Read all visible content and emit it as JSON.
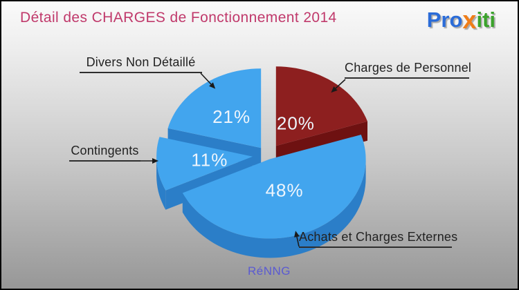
{
  "header": {
    "title": "Détail des CHARGES de Fonctionnement 2014",
    "title_color": "#c0396b"
  },
  "logo": {
    "name": "Proxiti",
    "parts": [
      {
        "text": "Pro",
        "color": "#2b6cd8"
      },
      {
        "text": "x",
        "color": "#f07d18"
      },
      {
        "text": "iti",
        "color": "#3ba32c"
      }
    ]
  },
  "chart_data": {
    "type": "pie",
    "title": "Détail des CHARGES de Fonctionnement 2014",
    "effect": "3d-exploded-pie",
    "legend_position": "callout-labels",
    "pct_label_color": "#eef5fc",
    "slices": [
      {
        "label": "Charges de Personnel",
        "value": 20,
        "pct_label": "20%",
        "color_top": "#8d1f1f",
        "color_side": "#6e1111"
      },
      {
        "label": "Achats et Charges Externes",
        "value": 48,
        "pct_label": "48%",
        "color_top": "#42a5ee",
        "color_side": "#2b7ec8"
      },
      {
        "label": "Contingents",
        "value": 11,
        "pct_label": "11%",
        "color_top": "#42a5ee",
        "color_side": "#2b7ec8"
      },
      {
        "label": "Divers Non Détaillé",
        "value": 21,
        "pct_label": "21%",
        "color_top": "#42a5ee",
        "color_side": "#2b7ec8"
      }
    ]
  },
  "footer": {
    "watermark": "RéNNG",
    "color": "#5a5ad2"
  }
}
